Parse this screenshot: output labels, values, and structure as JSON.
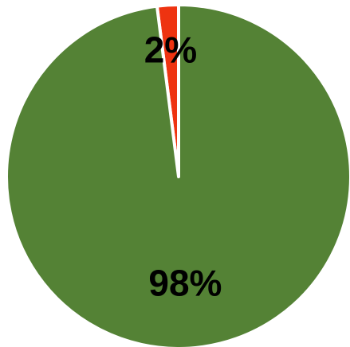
{
  "chart_data": {
    "type": "pie",
    "title": "",
    "legend": "none",
    "slices": [
      {
        "label": "",
        "value": 2,
        "display": "2%",
        "color": "#ee3311"
      },
      {
        "label": "",
        "value": 98,
        "display": "98%",
        "color": "#548235"
      }
    ]
  }
}
